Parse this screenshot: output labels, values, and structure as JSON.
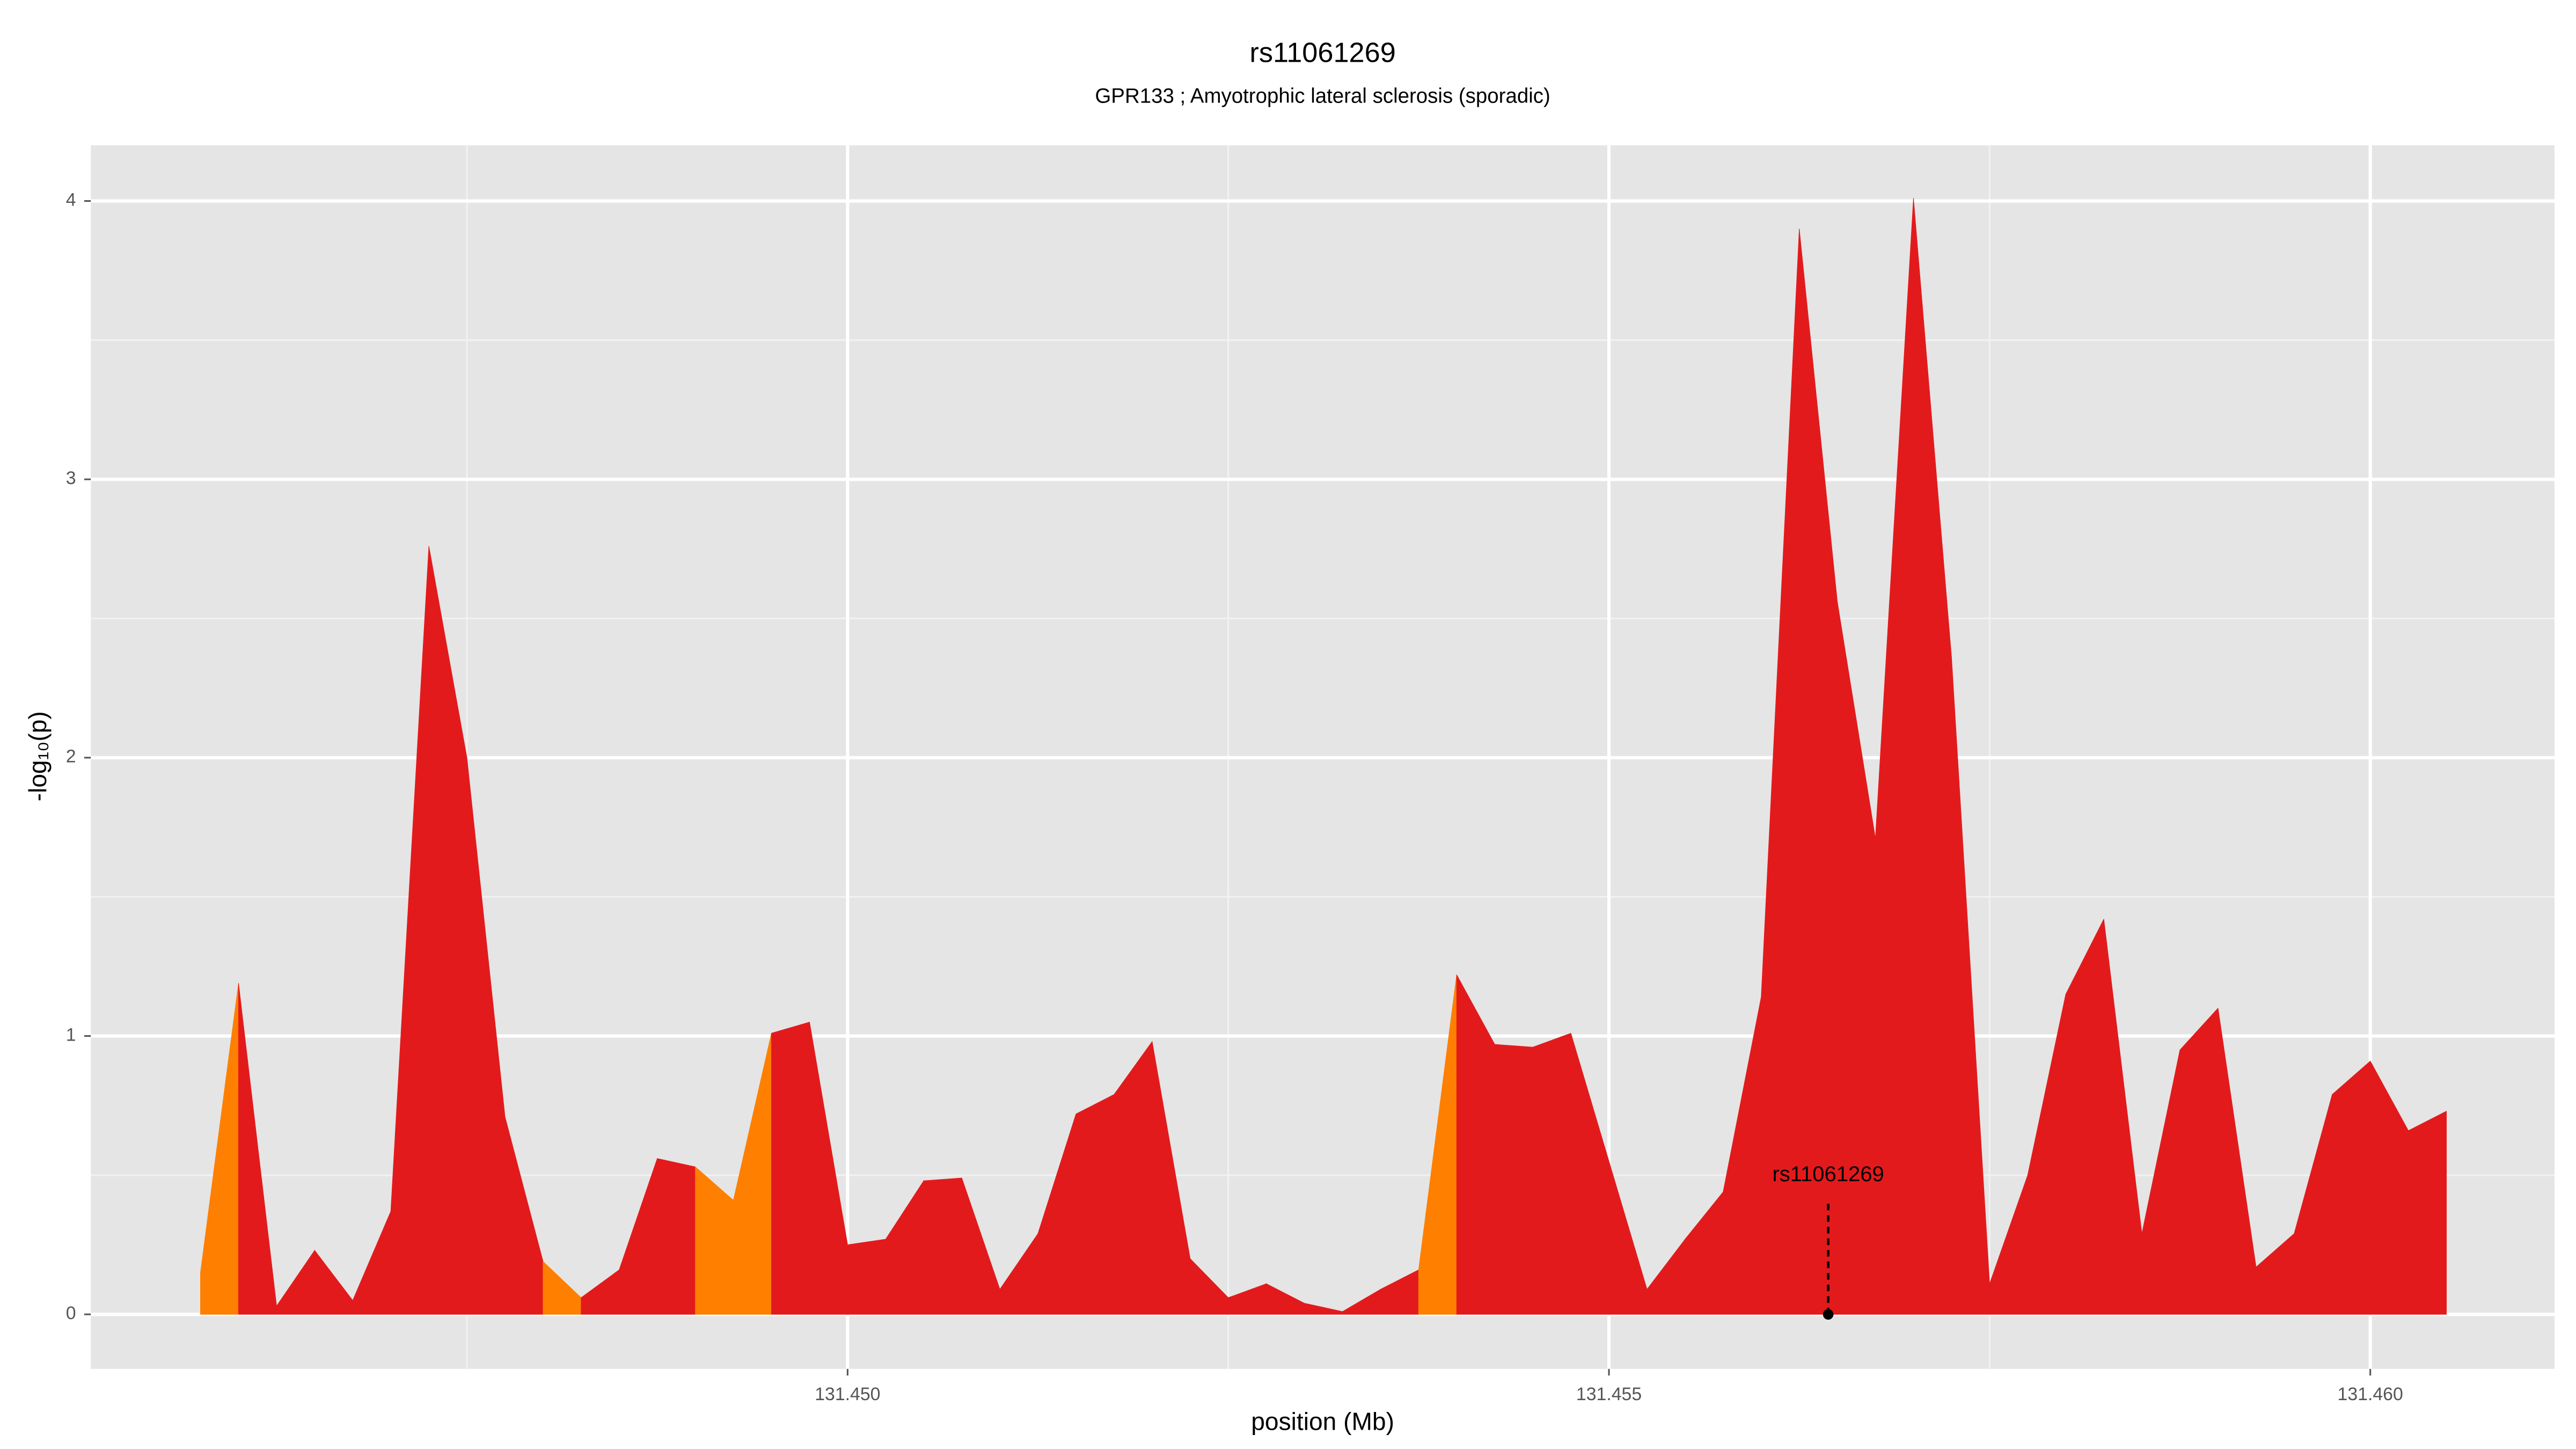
{
  "chart_data": {
    "type": "area",
    "title": "rs11061269",
    "subtitle": "GPR133 ; Amyotrophic lateral sclerosis (sporadic)",
    "xlabel": "position (Mb)",
    "ylabel": "-log₁₀(p)",
    "x": [
      131.44575,
      131.446,
      131.44625,
      131.4465,
      131.44675,
      131.447,
      131.44725,
      131.4475,
      131.44775,
      131.448,
      131.44825,
      131.4485,
      131.44875,
      131.449,
      131.44925,
      131.4495,
      131.44975,
      131.45,
      131.45025,
      131.4505,
      131.45075,
      131.451,
      131.45125,
      131.4515,
      131.45175,
      131.452,
      131.45225,
      131.4525,
      131.45275,
      131.453,
      131.45325,
      131.4535,
      131.45375,
      131.454,
      131.45425,
      131.4545,
      131.45475,
      131.455,
      131.45525,
      131.4555,
      131.45575,
      131.456,
      131.45625,
      131.4565,
      131.45675,
      131.457,
      131.45725,
      131.4575,
      131.45775,
      131.458,
      131.45825,
      131.4585,
      131.45875,
      131.459,
      131.45925,
      131.4595,
      131.45975,
      131.46,
      131.46025,
      131.4605
    ],
    "series": [
      {
        "values": [
          0.15,
          1.19,
          0.03,
          0.23,
          0.05,
          0.37,
          2.76,
          2.0,
          0.71,
          0.19,
          0.06,
          0.16,
          0.56,
          0.53,
          0.41,
          1.01,
          1.05,
          0.25,
          0.27,
          0.48,
          0.49,
          0.09,
          0.29,
          0.72,
          0.79,
          0.98,
          0.2,
          0.06,
          0.11,
          0.04,
          0.01,
          0.09,
          0.16,
          1.22,
          0.97,
          0.96,
          1.01,
          0.55,
          0.09,
          0.27,
          0.44,
          1.14,
          3.9,
          2.56,
          1.71,
          4.01,
          2.36,
          0.11,
          0.5,
          1.15,
          1.42,
          0.29,
          0.95,
          1.1,
          0.17,
          0.29,
          0.79,
          0.91,
          0.66,
          0.73
        ],
        "segment_colors": [
          "#ff7f00",
          "#e31a1c",
          "#e31a1c",
          "#e31a1c",
          "#e31a1c",
          "#e31a1c",
          "#e31a1c",
          "#e31a1c",
          "#e31a1c",
          "#ff7f00",
          "#e31a1c",
          "#e31a1c",
          "#e31a1c",
          "#ff7f00",
          "#ff7f00",
          "#e31a1c",
          "#e31a1c",
          "#e31a1c",
          "#e31a1c",
          "#e31a1c",
          "#e31a1c",
          "#e31a1c",
          "#e31a1c",
          "#e31a1c",
          "#e31a1c",
          "#e31a1c",
          "#e31a1c",
          "#e31a1c",
          "#e31a1c",
          "#e31a1c",
          "#e31a1c",
          "#e31a1c",
          "#ff7f00",
          "#e31a1c",
          "#e31a1c",
          "#e31a1c",
          "#e31a1c",
          "#e31a1c",
          "#e31a1c",
          "#e31a1c",
          "#e31a1c",
          "#e31a1c",
          "#e31a1c",
          "#e31a1c",
          "#e31a1c",
          "#e31a1c",
          "#e31a1c",
          "#e31a1c",
          "#e31a1c",
          "#e31a1c",
          "#e31a1c",
          "#e31a1c",
          "#e31a1c",
          "#e31a1c",
          "#e31a1c",
          "#e31a1c",
          "#e31a1c",
          "#e31a1c",
          "#e31a1c"
        ]
      }
    ],
    "annotation": {
      "text": "rs11061269",
      "x": 131.45644,
      "y": 0
    },
    "xlim": [
      131.44503,
      131.46121
    ],
    "ylim": [
      -0.196,
      4.2
    ],
    "xticks": [
      {
        "value": 131.45,
        "label": "131.450"
      },
      131.455,
      {
        "value": 131.46,
        "label": "131.460"
      }
    ],
    "yticks": [
      0,
      1,
      2,
      3,
      4
    ],
    "xminor": [
      131.4475,
      131.4525,
      131.4575
    ],
    "yminor": [
      0.5,
      1.5,
      2.5,
      3.5
    ],
    "grid": true
  }
}
